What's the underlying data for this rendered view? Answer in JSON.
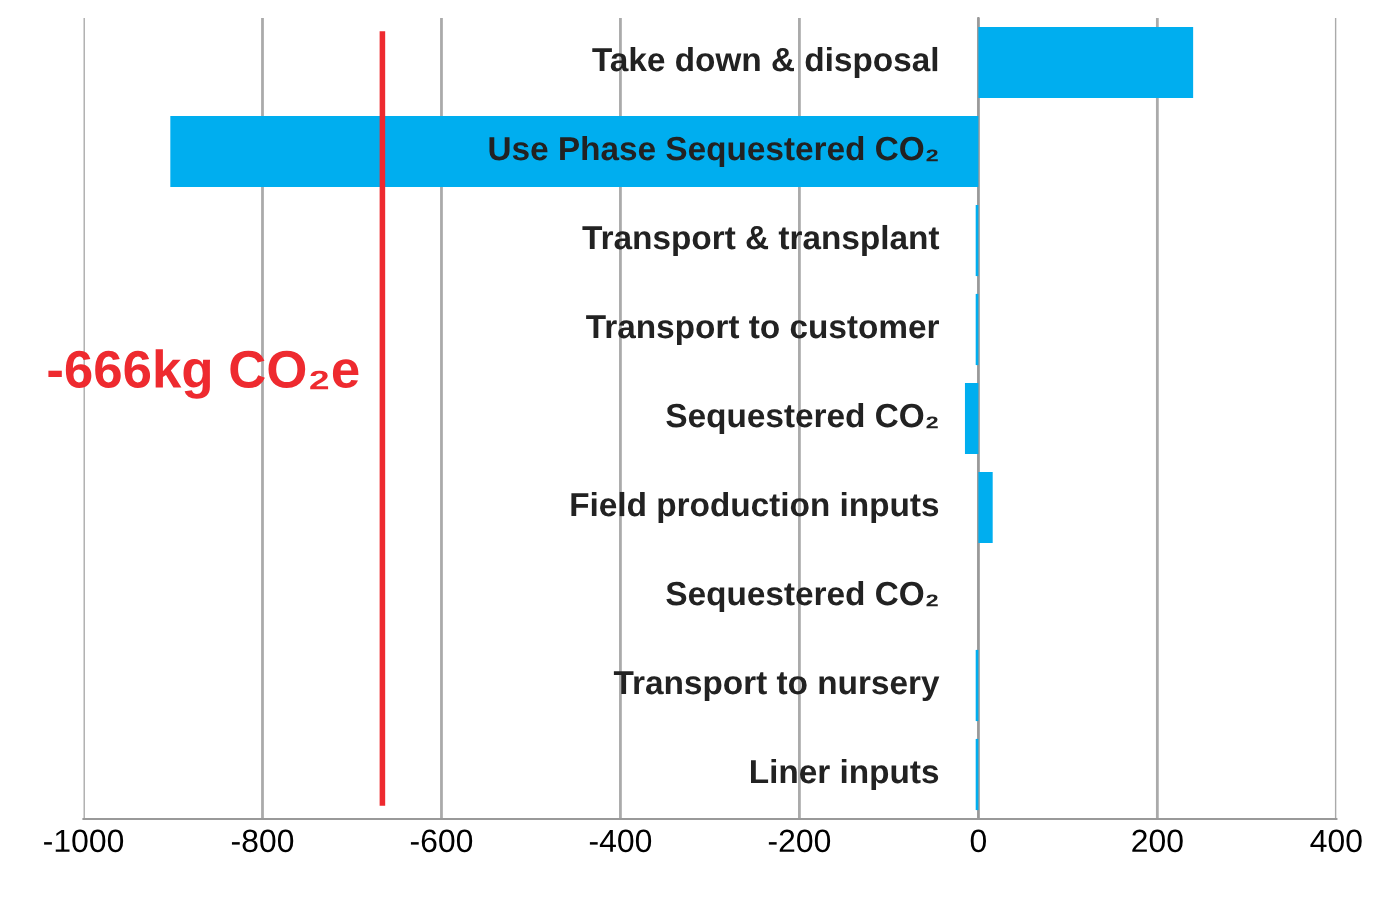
{
  "chart_data": {
    "type": "bar",
    "orientation": "horizontal",
    "categories": [
      "Take down & disposal",
      "Use Phase Sequestered CO₂",
      "Transport & transplant",
      "Transport to customer",
      "Sequestered CO₂",
      "Field production inputs",
      "Sequestered CO₂",
      "Transport to nursery",
      "Liner inputs"
    ],
    "values": [
      240,
      -903,
      -3,
      -3,
      -15,
      16,
      0,
      -3,
      -3
    ],
    "color": "#00aeef",
    "xlim": [
      -1000,
      400
    ],
    "xticks": [
      -1000,
      -800,
      -600,
      -400,
      -200,
      0,
      200,
      400
    ],
    "grid": "x",
    "ref_lines": [
      {
        "axis": "x",
        "value": -666,
        "label": "-666kg CO₂e",
        "color": "#ee2a2f"
      }
    ]
  }
}
